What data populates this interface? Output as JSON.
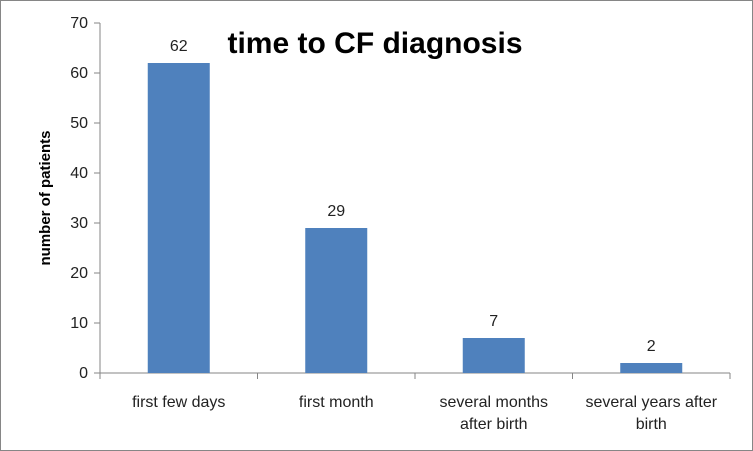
{
  "chart_data": {
    "type": "bar",
    "title": "time to CF diagnosis",
    "xlabel": "",
    "ylabel": "number of patients",
    "categories": [
      [
        "first few days"
      ],
      [
        "first month"
      ],
      [
        "several months",
        "after birth"
      ],
      [
        "several years after",
        "birth"
      ]
    ],
    "values": [
      62,
      29,
      7,
      2
    ],
    "ylim": [
      0,
      70
    ],
    "yticks": [
      0,
      10,
      20,
      30,
      40,
      50,
      60,
      70
    ],
    "grid": false,
    "legend": "none",
    "bar_color": "#4f81bd",
    "axis_color": "#868686"
  }
}
